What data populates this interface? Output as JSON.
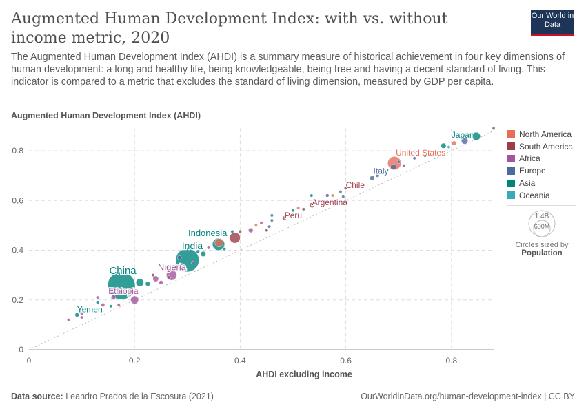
{
  "header": {
    "title": "Augmented Human Development Index: with vs. without income metric, 2020",
    "subtitle": "The Augmented Human Development Index (AHDI) is a summary measure of historical achievement in four key dimensions of human development: a long and healthy life, being knowledgeable, being free and having a decent standard of living. This indicator is compared to a metric that excludes the standard of living dimension, measured by GDP per capita.",
    "logo": "Our World in Data"
  },
  "footer": {
    "source_label": "Data source:",
    "source": "Leandro Prados de la Escosura (2021)",
    "url": "OurWorldinData.org/human-development-index | CC BY"
  },
  "size_legend": {
    "big": "1.4B",
    "small": "600M",
    "caption": "Circles sized by",
    "variable": "Population"
  },
  "chart_data": {
    "type": "scatter",
    "xlabel": "AHDI excluding income",
    "ylabel": "Augmented Human Development Index (AHDI)",
    "xlim": [
      0,
      0.88
    ],
    "ylim": [
      0,
      0.89
    ],
    "xticks": [
      "0",
      "0.2",
      "0.4",
      "0.6",
      "0.8"
    ],
    "yticks": [
      "0",
      "0.2",
      "0.4",
      "0.6",
      "0.8"
    ],
    "grid": true,
    "legend_position": "right",
    "reference_line": "y = x",
    "regions": [
      {
        "name": "North America",
        "color": "#e56e5a"
      },
      {
        "name": "South America",
        "color": "#9a3e4a"
      },
      {
        "name": "Africa",
        "color": "#a2559c"
      },
      {
        "name": "Europe",
        "color": "#4c6a9c"
      },
      {
        "name": "Asia",
        "color": "#00847e"
      },
      {
        "name": "Oceania",
        "color": "#38aaba"
      }
    ],
    "points": [
      {
        "label": "China",
        "x": 0.175,
        "y": 0.257,
        "region": "Asia",
        "pop": 1400
      },
      {
        "label": "India",
        "x": 0.3,
        "y": 0.36,
        "region": "Asia",
        "pop": 1000
      },
      {
        "label": "Indonesia",
        "x": 0.359,
        "y": 0.424,
        "region": "Asia",
        "pop": 270
      },
      {
        "label": "Nigeria",
        "x": 0.27,
        "y": 0.3,
        "region": "Africa",
        "pop": 200
      },
      {
        "label": "Ethiopia",
        "x": 0.2,
        "y": 0.2,
        "region": "Africa",
        "pop": 115
      },
      {
        "label": "Yemen",
        "x": 0.091,
        "y": 0.14,
        "region": "Asia",
        "pop": 30
      },
      {
        "label": "United States",
        "x": 0.692,
        "y": 0.75,
        "region": "North America",
        "pop": 330
      },
      {
        "label": "Japan",
        "x": 0.847,
        "y": 0.858,
        "region": "Asia",
        "pop": 125
      },
      {
        "label": "Italy",
        "x": 0.69,
        "y": 0.735,
        "region": "Europe",
        "pop": 60
      },
      {
        "label": "Chile",
        "x": 0.6,
        "y": 0.65,
        "region": "South America",
        "pop": 19
      },
      {
        "label": "Argentina",
        "x": 0.536,
        "y": 0.581,
        "region": "South America",
        "pop": 45
      },
      {
        "label": "Peru",
        "x": 0.484,
        "y": 0.529,
        "region": "South America",
        "pop": 33
      },
      {
        "x": 0.075,
        "y": 0.12,
        "region": "Africa",
        "pop": 10
      },
      {
        "x": 0.1,
        "y": 0.13,
        "region": "Africa",
        "pop": 8
      },
      {
        "x": 0.1,
        "y": 0.145,
        "region": "Africa",
        "pop": 12
      },
      {
        "x": 0.13,
        "y": 0.19,
        "region": "Asia",
        "pop": 8
      },
      {
        "x": 0.14,
        "y": 0.18,
        "region": "Africa",
        "pop": 25
      },
      {
        "x": 0.16,
        "y": 0.21,
        "region": "Africa",
        "pop": 40
      },
      {
        "x": 0.155,
        "y": 0.175,
        "region": "Asia",
        "pop": 15
      },
      {
        "x": 0.13,
        "y": 0.21,
        "region": "Africa",
        "pop": 6
      },
      {
        "x": 0.17,
        "y": 0.18,
        "region": "Africa",
        "pop": 8
      },
      {
        "x": 0.21,
        "y": 0.27,
        "region": "Asia",
        "pop": 110
      },
      {
        "x": 0.225,
        "y": 0.265,
        "region": "Asia",
        "pop": 40
      },
      {
        "x": 0.24,
        "y": 0.285,
        "region": "Africa",
        "pop": 60
      },
      {
        "x": 0.25,
        "y": 0.27,
        "region": "Africa",
        "pop": 30
      },
      {
        "x": 0.235,
        "y": 0.3,
        "region": "South America",
        "pop": 10
      },
      {
        "x": 0.265,
        "y": 0.29,
        "region": "Africa",
        "pop": 25
      },
      {
        "x": 0.275,
        "y": 0.32,
        "region": "Africa",
        "pop": 15
      },
      {
        "x": 0.29,
        "y": 0.34,
        "region": "Africa",
        "pop": 20
      },
      {
        "x": 0.285,
        "y": 0.37,
        "region": "Europe",
        "pop": 30
      },
      {
        "x": 0.31,
        "y": 0.35,
        "region": "Africa",
        "pop": 10
      },
      {
        "x": 0.33,
        "y": 0.385,
        "region": "Asia",
        "pop": 50
      },
      {
        "x": 0.32,
        "y": 0.395,
        "region": "Asia",
        "pop": 20
      },
      {
        "x": 0.34,
        "y": 0.41,
        "region": "Africa",
        "pop": 10
      },
      {
        "x": 0.36,
        "y": 0.43,
        "region": "North America",
        "pop": 130
      },
      {
        "x": 0.37,
        "y": 0.405,
        "region": "Asia",
        "pop": 15
      },
      {
        "x": 0.39,
        "y": 0.45,
        "region": "South America",
        "pop": 210
      },
      {
        "x": 0.4,
        "y": 0.475,
        "region": "South America",
        "pop": 12
      },
      {
        "x": 0.385,
        "y": 0.475,
        "region": "Asia",
        "pop": 10
      },
      {
        "x": 0.42,
        "y": 0.48,
        "region": "Africa",
        "pop": 40
      },
      {
        "x": 0.43,
        "y": 0.5,
        "region": "North America",
        "pop": 12
      },
      {
        "x": 0.44,
        "y": 0.51,
        "region": "Africa",
        "pop": 8
      },
      {
        "x": 0.45,
        "y": 0.48,
        "region": "South America",
        "pop": 10
      },
      {
        "x": 0.455,
        "y": 0.495,
        "region": "Europe",
        "pop": 8
      },
      {
        "x": 0.46,
        "y": 0.52,
        "region": "Europe",
        "pop": 8
      },
      {
        "x": 0.46,
        "y": 0.54,
        "region": "Europe",
        "pop": 8
      },
      {
        "x": 0.5,
        "y": 0.56,
        "region": "Asia",
        "pop": 10
      },
      {
        "x": 0.51,
        "y": 0.57,
        "region": "North America",
        "pop": 6
      },
      {
        "x": 0.52,
        "y": 0.565,
        "region": "South America",
        "pop": 8
      },
      {
        "x": 0.535,
        "y": 0.62,
        "region": "Asia",
        "pop": 8
      },
      {
        "x": 0.54,
        "y": 0.6,
        "region": "North America",
        "pop": 6
      },
      {
        "x": 0.565,
        "y": 0.62,
        "region": "Europe",
        "pop": 20
      },
      {
        "x": 0.575,
        "y": 0.62,
        "region": "North America",
        "pop": 8
      },
      {
        "x": 0.59,
        "y": 0.635,
        "region": "Europe",
        "pop": 8
      },
      {
        "x": 0.595,
        "y": 0.615,
        "region": "Europe",
        "pop": 8
      },
      {
        "x": 0.65,
        "y": 0.69,
        "region": "Europe",
        "pop": 40
      },
      {
        "x": 0.66,
        "y": 0.7,
        "region": "Europe",
        "pop": 20
      },
      {
        "x": 0.7,
        "y": 0.755,
        "region": "Europe",
        "pop": 10
      },
      {
        "x": 0.71,
        "y": 0.74,
        "region": "Europe",
        "pop": 10
      },
      {
        "x": 0.73,
        "y": 0.77,
        "region": "Europe",
        "pop": 8
      },
      {
        "x": 0.75,
        "y": 0.78,
        "region": "Europe",
        "pop": 8
      },
      {
        "x": 0.76,
        "y": 0.785,
        "region": "Europe",
        "pop": 6
      },
      {
        "x": 0.785,
        "y": 0.82,
        "region": "Asia",
        "pop": 50
      },
      {
        "x": 0.795,
        "y": 0.815,
        "region": "Oceania",
        "pop": 10
      },
      {
        "x": 0.805,
        "y": 0.83,
        "region": "North America",
        "pop": 38
      },
      {
        "x": 0.825,
        "y": 0.84,
        "region": "Europe",
        "pop": 80
      },
      {
        "x": 0.88,
        "y": 0.89,
        "region": "Europe",
        "pop": 5
      }
    ]
  }
}
